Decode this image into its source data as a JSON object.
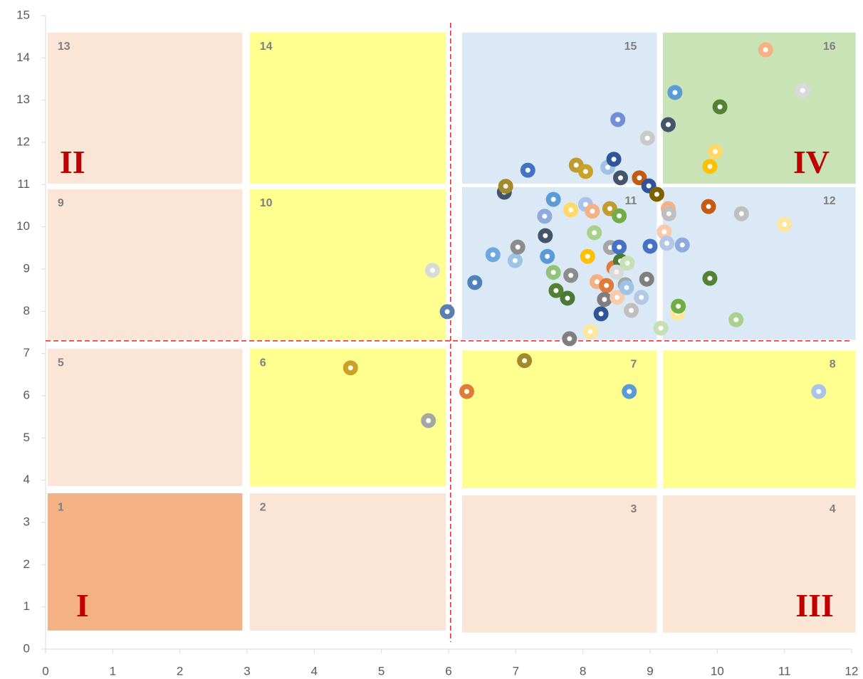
{
  "chart_data": {
    "type": "scatter",
    "xlim": [
      0,
      12
    ],
    "xticks": [
      0,
      1,
      2,
      3,
      4,
      5,
      6,
      7,
      8,
      9,
      10,
      11,
      12
    ],
    "ylim": [
      0,
      15
    ],
    "yticks": [
      0,
      1,
      2,
      3,
      4,
      5,
      6,
      7,
      8,
      9,
      10,
      11,
      12,
      13,
      14,
      15
    ],
    "zones": [
      {
        "label": "1",
        "x": [
          0.03,
          2.93
        ],
        "y": [
          0.44,
          3.69
        ],
        "color": "#f4b183"
      },
      {
        "label": "2",
        "x": [
          3.04,
          5.96
        ],
        "y": [
          0.44,
          3.69
        ],
        "color": "#fbe5d6"
      },
      {
        "label": "3",
        "x": [
          6.2,
          9.1
        ],
        "y": [
          0.39,
          3.64
        ],
        "color": "#fbe5d6"
      },
      {
        "label": "4",
        "x": [
          9.19,
          12.06
        ],
        "y": [
          0.39,
          3.64
        ],
        "color": "#fbe5d6"
      },
      {
        "label": "5",
        "x": [
          0.03,
          2.93
        ],
        "y": [
          3.86,
          7.11
        ],
        "color": "#fbe5d6"
      },
      {
        "label": "6",
        "x": [
          3.04,
          5.96
        ],
        "y": [
          3.86,
          7.11
        ],
        "color": "#ffff8f"
      },
      {
        "label": "7",
        "x": [
          6.2,
          9.1
        ],
        "y": [
          3.81,
          7.07
        ],
        "color": "#ffff8f"
      },
      {
        "label": "8",
        "x": [
          9.19,
          12.06
        ],
        "y": [
          3.81,
          7.07
        ],
        "color": "#ffff8f"
      },
      {
        "label": "9",
        "x": [
          0.03,
          2.93
        ],
        "y": [
          7.33,
          10.89
        ],
        "color": "#fbe5d6"
      },
      {
        "label": "10",
        "x": [
          3.04,
          5.96
        ],
        "y": [
          7.33,
          10.89
        ],
        "color": "#ffff8f"
      },
      {
        "label": "11",
        "x": [
          6.2,
          9.1
        ],
        "y": [
          7.33,
          10.94
        ],
        "color": "#dbe8f5"
      },
      {
        "label": "12",
        "x": [
          9.19,
          12.06
        ],
        "y": [
          7.33,
          10.94
        ],
        "color": "#dbe8f5"
      },
      {
        "label": "13",
        "x": [
          0.03,
          2.93
        ],
        "y": [
          11.02,
          14.6
        ],
        "color": "#fbe5d6"
      },
      {
        "label": "14",
        "x": [
          3.04,
          5.96
        ],
        "y": [
          11.02,
          14.6
        ],
        "color": "#ffff8f"
      },
      {
        "label": "15",
        "x": [
          6.2,
          9.1
        ],
        "y": [
          11.02,
          14.6
        ],
        "color": "#dbe8f5"
      },
      {
        "label": "16",
        "x": [
          9.19,
          12.06
        ],
        "y": [
          11.02,
          14.6
        ],
        "color": "#c9e3b6"
      }
    ],
    "annotations": [
      {
        "text": "I",
        "x": 0.55,
        "y": 0.95
      },
      {
        "text": "II",
        "x": 0.4,
        "y": 11.45
      },
      {
        "text": "III",
        "x": 11.45,
        "y": 0.95
      },
      {
        "text": "IV",
        "x": 11.4,
        "y": 11.45
      }
    ],
    "reference_lines": {
      "x": 6.03,
      "y": 7.3,
      "color": "#e0262b"
    },
    "x": [
      5.98,
      5.76,
      4.54,
      5.7,
      6.27,
      7.13,
      8.69,
      11.51,
      6.39,
      6.66,
      6.99,
      7.03,
      6.83,
      6.85,
      7.18,
      7.56,
      7.43,
      7.44,
      7.47,
      7.56,
      7.6,
      7.77,
      7.8,
      7.82,
      7.82,
      7.9,
      8.04,
      8.04,
      8.14,
      8.17,
      8.07,
      8.11,
      8.21,
      8.35,
      8.27,
      8.32,
      8.37,
      8.46,
      8.52,
      8.56,
      8.4,
      8.54,
      8.41,
      8.54,
      8.46,
      8.56,
      8.5,
      8.66,
      8.51,
      8.63,
      8.65,
      8.72,
      8.87,
      8.84,
      8.96,
      8.98,
      9.1,
      8.95,
      9.0,
      9.27,
      9.37,
      9.27,
      9.28,
      9.21,
      9.25,
      9.48,
      9.16,
      9.41,
      9.42,
      9.89,
      9.87,
      10.36,
      10.28,
      9.89,
      9.97,
      10.04,
      10.72,
      11.27,
      11.0
    ],
    "values": [
      7.99,
      8.97,
      6.66,
      5.41,
      6.1,
      6.83,
      6.1,
      6.1,
      8.68,
      9.34,
      9.2,
      9.52,
      10.82,
      10.96,
      11.34,
      10.65,
      10.25,
      9.79,
      9.3,
      8.92,
      8.49,
      8.31,
      7.35,
      8.85,
      10.4,
      11.46,
      11.31,
      10.53,
      10.37,
      9.86,
      9.3,
      7.52,
      8.7,
      8.61,
      7.94,
      8.28,
      11.41,
      11.6,
      12.54,
      11.16,
      10.43,
      10.26,
      9.51,
      9.52,
      9.03,
      9.19,
      8.93,
      9.14,
      8.33,
      8.63,
      8.56,
      8.02,
      8.33,
      11.16,
      12.1,
      10.97,
      10.77,
      8.76,
      9.54,
      12.42,
      13.18,
      10.43,
      10.31,
      9.88,
      9.61,
      9.57,
      7.6,
      7.96,
      8.12,
      8.78,
      10.48,
      10.31,
      7.8,
      11.43,
      11.78,
      12.84,
      14.19,
      13.23,
      10.06
    ],
    "colors": [
      "#5a7fb0",
      "#d9d9d9",
      "#c9a227",
      "#a5a5a5",
      "#e07b39",
      "#a08a2a",
      "#5b9bd5",
      "#a9c4e8",
      "#4f81bd",
      "#6fa8dc",
      "#9dc3e6",
      "#8c8c8c",
      "#44546a",
      "#a08a2a",
      "#4472c4",
      "#5b9bd5",
      "#8faadc",
      "#44546a",
      "#5b9bd5",
      "#8fc47a",
      "#548235",
      "#4a7a35",
      "#7f7f7f",
      "#8c8c8c",
      "#ffd966",
      "#bf9b30",
      "#c9a227",
      "#a9c4e8",
      "#f4b183",
      "#a9d18e",
      "#ffc000",
      "#ffe699",
      "#f4b183",
      "#e07b39",
      "#2f5597",
      "#7f7f7f",
      "#9dc3e6",
      "#2f5597",
      "#6f8fd8",
      "#44546a",
      "#bf9b30",
      "#70ad47",
      "#a5a5a5",
      "#4472c4",
      "#e07b39",
      "#4a7a35",
      "#d9d9d9",
      "#c5e0b4",
      "#f8cbad",
      "#a5a5a5",
      "#9dc3e6",
      "#bfbfbf",
      "#b4c7e7",
      "#c55a11",
      "#c9c9c9",
      "#2f5597",
      "#7f6000",
      "#7f7f7f",
      "#4472c4",
      "#44546a",
      "#5b9bd5",
      "#f4b183",
      "#bfbfbf",
      "#f8cbad",
      "#b4c7e7",
      "#8faadc",
      "#c5e0b4",
      "#ffe699",
      "#70ad47",
      "#548235",
      "#c55a11",
      "#bfbfbf",
      "#a9d18e",
      "#ffc000",
      "#ffd966",
      "#548235",
      "#f4b183",
      "#d9d9d9",
      "#ffe699"
    ]
  }
}
